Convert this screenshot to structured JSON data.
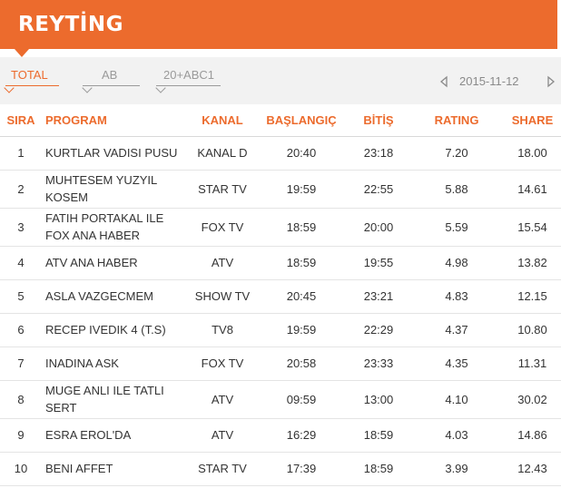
{
  "header": {
    "title": "REYTİNG"
  },
  "filters": {
    "tabs": [
      {
        "label": "TOTAL",
        "active": true
      },
      {
        "label": "AB",
        "active": false
      },
      {
        "label": "20+ABC1",
        "active": false
      }
    ],
    "date": "2015-11-12"
  },
  "table": {
    "columns": [
      "SIRA",
      "PROGRAM",
      "KANAL",
      "BAŞLANGIÇ",
      "BİTİŞ",
      "RATING",
      "SHARE"
    ],
    "rows": [
      {
        "sira": "1",
        "program": "KURTLAR VADISI PUSU",
        "kanal": "KANAL D",
        "baslangic": "20:40",
        "bitis": "23:18",
        "rating": "7.20",
        "share": "18.00"
      },
      {
        "sira": "2",
        "program": "MUHTESEM YUZYIL KOSEM",
        "kanal": "STAR TV",
        "baslangic": "19:59",
        "bitis": "22:55",
        "rating": "5.88",
        "share": "14.61"
      },
      {
        "sira": "3",
        "program": "FATIH PORTAKAL ILE FOX ANA HABER",
        "kanal": "FOX TV",
        "baslangic": "18:59",
        "bitis": "20:00",
        "rating": "5.59",
        "share": "15.54"
      },
      {
        "sira": "4",
        "program": "ATV ANA HABER",
        "kanal": "ATV",
        "baslangic": "18:59",
        "bitis": "19:55",
        "rating": "4.98",
        "share": "13.82"
      },
      {
        "sira": "5",
        "program": "ASLA VAZGECMEM",
        "kanal": "SHOW TV",
        "baslangic": "20:45",
        "bitis": "23:21",
        "rating": "4.83",
        "share": "12.15"
      },
      {
        "sira": "6",
        "program": "RECEP IVEDIK 4 (T.S)",
        "kanal": "TV8",
        "baslangic": "19:59",
        "bitis": "22:29",
        "rating": "4.37",
        "share": "10.80"
      },
      {
        "sira": "7",
        "program": "INADINA ASK",
        "kanal": "FOX TV",
        "baslangic": "20:58",
        "bitis": "23:33",
        "rating": "4.35",
        "share": "11.31"
      },
      {
        "sira": "8",
        "program": "MUGE ANLI ILE TATLI SERT",
        "kanal": "ATV",
        "baslangic": "09:59",
        "bitis": "13:00",
        "rating": "4.10",
        "share": "30.02"
      },
      {
        "sira": "9",
        "program": "ESRA EROL'DA",
        "kanal": "ATV",
        "baslangic": "16:29",
        "bitis": "18:59",
        "rating": "4.03",
        "share": "14.86"
      },
      {
        "sira": "10",
        "program": "BENI AFFET",
        "kanal": "STAR TV",
        "baslangic": "17:39",
        "bitis": "18:59",
        "rating": "3.99",
        "share": "12.43"
      }
    ]
  },
  "colors": {
    "accent": "#ec6b2d",
    "filter_bg": "#f2f2f2",
    "muted": "#9a9a9a"
  },
  "icons": {
    "prev": "chevron-left-icon",
    "next": "chevron-right-icon"
  }
}
